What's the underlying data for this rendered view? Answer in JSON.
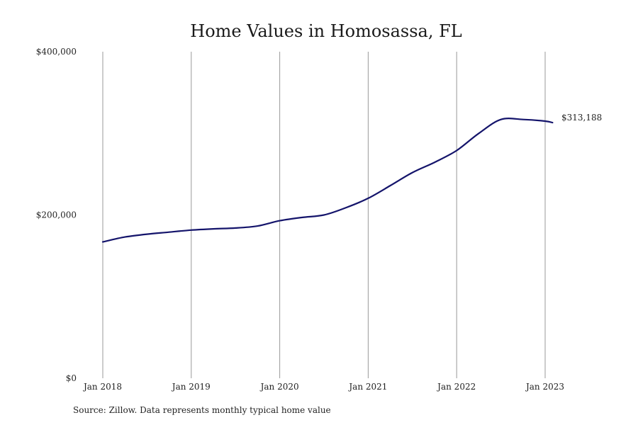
{
  "source_note": "Source: Zillow. Data represents monthly typical home value",
  "colors": {
    "line": "#14146b",
    "grid": "#9a9a9a",
    "text": "#222222"
  },
  "chart_data": {
    "type": "line",
    "title": "Home Values in Homosassa, FL",
    "xlabel": "",
    "ylabel": "",
    "ylim": [
      0,
      400000
    ],
    "yticks": [
      0,
      200000,
      400000
    ],
    "ytick_labels": [
      "$0",
      "$200,000",
      "$400,000"
    ],
    "xticks": [
      "2018-01",
      "2019-01",
      "2020-01",
      "2021-01",
      "2022-01",
      "2023-01"
    ],
    "xtick_labels": [
      "Jan 2018",
      "Jan 2019",
      "Jan 2020",
      "Jan 2021",
      "Jan 2022",
      "Jan 2023"
    ],
    "grid": "vertical lines at x ticks",
    "end_label": "$313,188",
    "series": [
      {
        "x": [
          "2018-01",
          "2018-04",
          "2018-07",
          "2018-10",
          "2019-01",
          "2019-04",
          "2019-07",
          "2019-10",
          "2020-01",
          "2020-04",
          "2020-07",
          "2020-10",
          "2021-01",
          "2021-04",
          "2021-07",
          "2021-10",
          "2022-01",
          "2022-04",
          "2022-07",
          "2022-10",
          "2023-01",
          "2023-02"
        ],
        "values": [
          167000,
          173000,
          176500,
          179000,
          181500,
          183000,
          184000,
          186500,
          193000,
          197000,
          200000,
          209000,
          220500,
          236000,
          252000,
          264500,
          279000,
          300000,
          317000,
          317000,
          315000,
          313188
        ]
      }
    ]
  }
}
